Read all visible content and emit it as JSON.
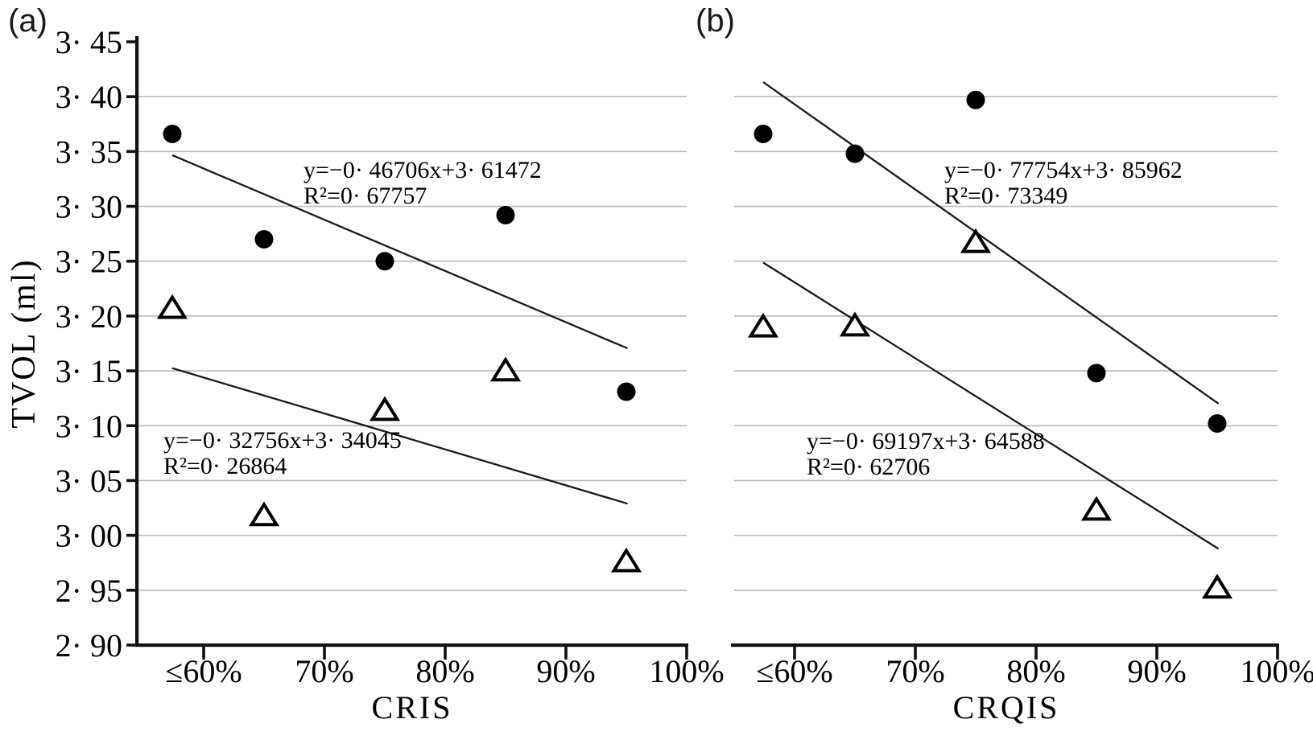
{
  "figure": {
    "background": "#ffffff",
    "colors": {
      "axis": "#111111",
      "grid": "#b9b9b9",
      "marker": "#000000",
      "text": "#000000"
    },
    "y_axis_title": "TVOL (ml)"
  },
  "chart_data": [
    {
      "type": "scatter",
      "panel_label": "(a)",
      "xlabel": "CRIS",
      "ylabel": "TVOL (ml)",
      "x_tick_labels": [
        "≤60%",
        "70%",
        "80%",
        "90%",
        "100%"
      ],
      "x_tick_values": [
        60,
        70,
        80,
        90,
        100
      ],
      "y_tick_labels": [
        "3· 45",
        "3· 40",
        "3· 35",
        "3· 30",
        "3· 25",
        "3· 20",
        "3· 15",
        "3· 10",
        "3· 05",
        "3· 00",
        "2· 95",
        "2· 90"
      ],
      "y_tick_values": [
        3.45,
        3.4,
        3.35,
        3.3,
        3.25,
        3.2,
        3.15,
        3.1,
        3.05,
        3.0,
        2.95,
        2.9
      ],
      "ylim": [
        2.9,
        3.45
      ],
      "grid": "horizontal",
      "legend": "none",
      "series": [
        {
          "name": "TVOL vs CRIS (filled circles)",
          "marker": "circle",
          "x_pct": [
            57.4,
            65,
            75,
            85,
            95
          ],
          "y": [
            3.366,
            3.27,
            3.25,
            3.292,
            3.131
          ],
          "trend": {
            "slope": -0.46706,
            "intercept": 3.61472,
            "equation": "y=−0· 46706x+3· 61472",
            "r2": "R²=0· 67757"
          }
        },
        {
          "name": "TVOL vs CRIS (open triangles)",
          "marker": "triangle",
          "x_pct": [
            57.4,
            65,
            75,
            85,
            95
          ],
          "y": [
            3.208,
            3.019,
            3.115,
            3.151,
            2.977
          ],
          "trend": {
            "slope": -0.32756,
            "intercept": 3.34045,
            "equation": "y=−0· 32756x+3· 34045",
            "r2": "R²=0· 26864"
          }
        }
      ]
    },
    {
      "type": "scatter",
      "panel_label": "(b)",
      "xlabel": "CRQIS",
      "ylabel": "TVOL (ml)",
      "x_tick_labels": [
        "≤60%",
        "70%",
        "80%",
        "90%",
        "100%"
      ],
      "x_tick_values": [
        60,
        70,
        80,
        90,
        100
      ],
      "y_tick_labels": [],
      "y_tick_values": [
        3.45,
        3.4,
        3.35,
        3.3,
        3.25,
        3.2,
        3.15,
        3.1,
        3.05,
        3.0,
        2.95,
        2.9
      ],
      "ylim": [
        2.9,
        3.45
      ],
      "grid": "horizontal",
      "legend": "none",
      "series": [
        {
          "name": "TVOL vs CRQIS (filled circles)",
          "marker": "circle",
          "x_pct": [
            57.4,
            65,
            75,
            85,
            95
          ],
          "y": [
            3.366,
            3.348,
            3.397,
            3.148,
            3.102
          ],
          "trend": {
            "slope": -0.77754,
            "intercept": 3.85962,
            "equation": "y=−0· 77754x+3· 85962",
            "r2": "R²=0· 73349"
          }
        },
        {
          "name": "TVOL vs CRQIS (open triangles)",
          "marker": "triangle",
          "x_pct": [
            57.4,
            65,
            75,
            85,
            95
          ],
          "y": [
            3.191,
            3.192,
            3.268,
            3.024,
            2.953
          ],
          "trend": {
            "slope": -0.69197,
            "intercept": 3.64588,
            "equation": "y=−0· 69197x+3· 64588",
            "r2": "R²=0· 62706"
          }
        }
      ]
    }
  ]
}
